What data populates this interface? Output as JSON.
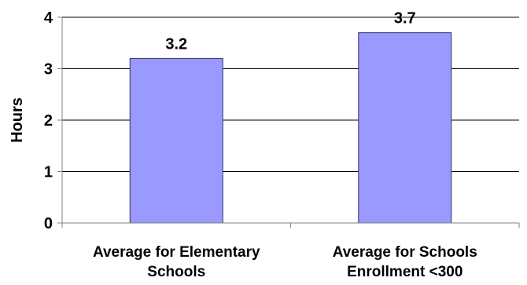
{
  "chart_data": {
    "type": "bar",
    "title": "",
    "xlabel": "",
    "ylabel": "Hours",
    "ylim": [
      0,
      4
    ],
    "yticks": [
      0,
      1,
      2,
      3,
      4
    ],
    "grid": true,
    "categories": [
      [
        "Average for Elementary",
        "Schools"
      ],
      [
        "Average for Schools",
        "Enrollment <300"
      ]
    ],
    "values": [
      3.2,
      3.7
    ],
    "data_labels": [
      "3.2",
      "3.7"
    ],
    "colors": {
      "bar_fill": "#9999ff",
      "bar_stroke": "#333366",
      "gridline": "#000000",
      "axis": "#808080"
    }
  }
}
